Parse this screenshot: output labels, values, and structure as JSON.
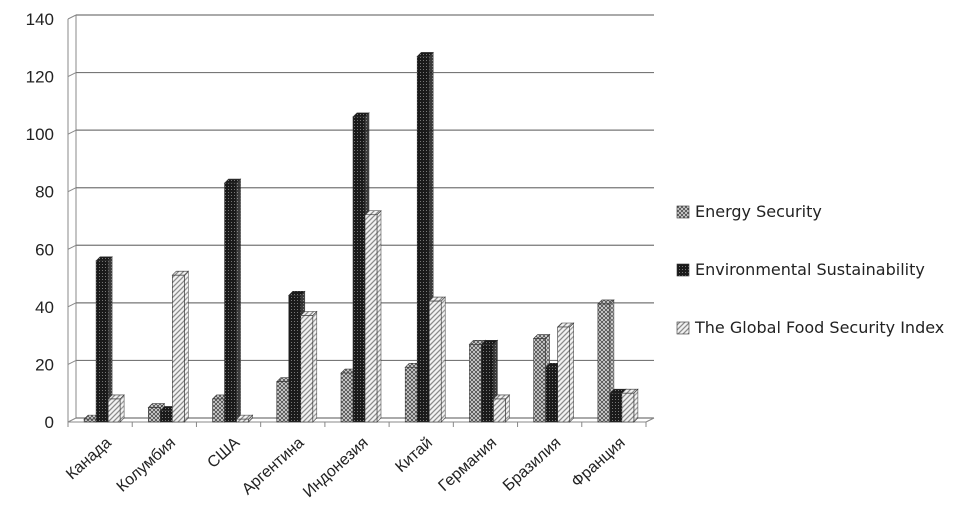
{
  "chart_data": {
    "type": "bar",
    "title": "",
    "xlabel": "",
    "ylabel": "",
    "ylim": [
      0,
      140
    ],
    "yticks": [
      0,
      20,
      40,
      60,
      80,
      100,
      120,
      140
    ],
    "grid": true,
    "legend_position": "right",
    "categories": [
      "Канада",
      "Колумбия",
      "США",
      "Аргентина",
      "Индонезия",
      "Китай",
      "Германия",
      "Бразилия",
      "Франция"
    ],
    "series": [
      {
        "name": "Energy Security",
        "values": [
          1,
          5,
          8,
          14,
          17,
          19,
          27,
          29,
          41
        ],
        "color": "#666666",
        "pattern": "crosshatch"
      },
      {
        "name": "Environmental  Sustainability",
        "values": [
          56,
          4,
          83,
          44,
          106,
          127,
          27,
          19,
          10
        ],
        "color": "#1a1a1a",
        "pattern": "dark-grid"
      },
      {
        "name": "The Global Food Security Index",
        "values": [
          8,
          51,
          1,
          37,
          72,
          42,
          8,
          33,
          10
        ],
        "color": "#bbbbbb",
        "pattern": "diagonal"
      }
    ]
  }
}
